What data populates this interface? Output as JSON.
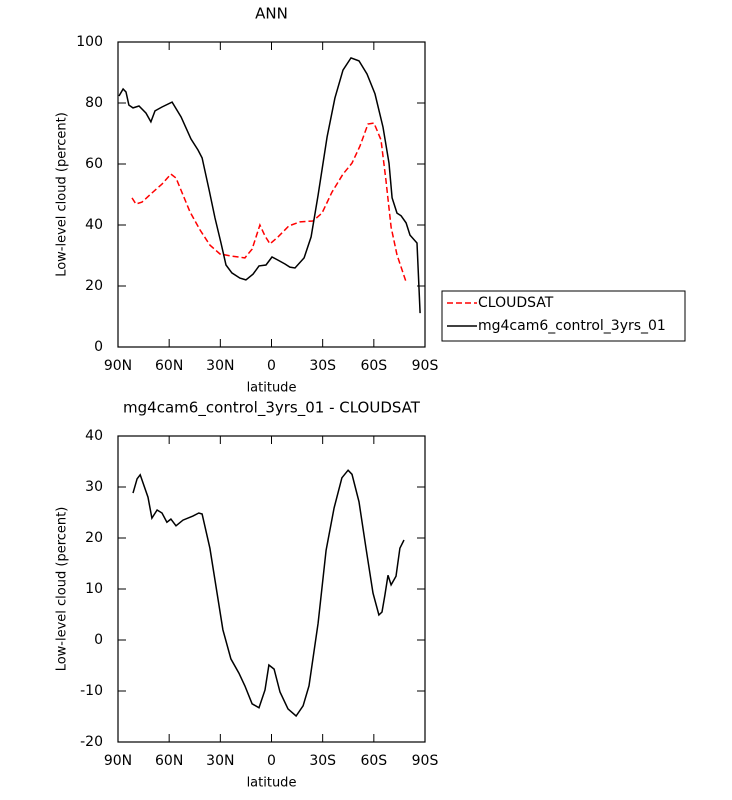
{
  "chart_data": [
    {
      "type": "line",
      "title": "ANN",
      "xlabel": "latitude",
      "ylabel": "Low-level cloud (percent)",
      "xlim": [
        90,
        -90
      ],
      "xticks": [
        {
          "value": 90,
          "label": "90N"
        },
        {
          "value": 60,
          "label": "60N"
        },
        {
          "value": 30,
          "label": "30N"
        },
        0,
        {
          "value": -30,
          "label": "30S"
        },
        {
          "value": -60,
          "label": "60S"
        },
        {
          "value": -90,
          "label": "90S"
        }
      ],
      "ylim": [
        0,
        100
      ],
      "yticks": [
        0,
        20,
        40,
        60,
        80,
        100
      ],
      "legend": "right",
      "series": [
        {
          "name": "CLOUDSAT",
          "color": "#ff0000",
          "dashed": true,
          "x": [
            81.8,
            79.5,
            75.9,
            70.1,
            64.2,
            59.0,
            56.0,
            53.1,
            47.8,
            41.9,
            36.1,
            30.2,
            23.2,
            15.6,
            11.4,
            6.8,
            3.8,
            0.9,
            -3.8,
            -10.2,
            -16.7,
            -24.3,
            -29.6,
            -35.5,
            -41.9,
            -47.2,
            -51.9,
            -56.6,
            -60.1,
            -64.2,
            -67.1,
            -70.1,
            -73.6,
            -78.9
          ],
          "values": [
            48.9,
            46.9,
            47.5,
            50.5,
            53.4,
            56.7,
            55.4,
            51.5,
            44.3,
            38.4,
            33.4,
            30.5,
            29.8,
            29.2,
            32.1,
            40.0,
            36.4,
            33.8,
            36.1,
            39.7,
            41.0,
            41.3,
            43.9,
            50.8,
            56.7,
            60.3,
            65.9,
            73.1,
            73.4,
            67.9,
            54.8,
            39.3,
            30.2,
            21.3
          ]
        },
        {
          "name": "mg4cam6_control_3yrs_01",
          "color": "#000000",
          "dashed": false,
          "x": [
            89.4,
            87.0,
            85.3,
            83.6,
            81.2,
            77.7,
            73.6,
            70.7,
            68.3,
            64.2,
            58.3,
            53.0,
            47.2,
            43.1,
            40.7,
            36.6,
            33.1,
            29.6,
            26.7,
            23.2,
            18.5,
            15.0,
            10.8,
            7.3,
            3.2,
            -0.3,
            -3.8,
            -7.9,
            -10.8,
            -13.8,
            -19.1,
            -23.2,
            -27.3,
            -32.6,
            -37.2,
            -41.9,
            -46.6,
            -51.3,
            -56.0,
            -60.7,
            -65.4,
            -68.9,
            -70.7,
            -73.6,
            -76.0,
            -78.9,
            -81.2,
            -85.3,
            -87.1
          ],
          "values": [
            82.3,
            84.6,
            83.6,
            79.3,
            78.4,
            79.0,
            76.7,
            73.8,
            77.4,
            78.7,
            80.3,
            75.4,
            68.2,
            64.6,
            62.0,
            51.5,
            42.3,
            34.1,
            26.9,
            24.3,
            22.6,
            22.0,
            23.9,
            26.6,
            26.9,
            29.5,
            28.5,
            27.2,
            26.2,
            25.9,
            29.2,
            36.1,
            49.8,
            68.9,
            81.6,
            90.8,
            94.8,
            93.8,
            89.5,
            83.0,
            72.1,
            60.3,
            48.9,
            43.9,
            43.0,
            40.7,
            36.7,
            34.1,
            11.1
          ]
        }
      ]
    },
    {
      "type": "line",
      "title": "mg4cam6_control_3yrs_01 - CLOUDSAT",
      "xlabel": "latitude",
      "ylabel": "Low-level cloud (percent)",
      "xlim": [
        90,
        -90
      ],
      "xticks": [
        {
          "value": 90,
          "label": "90N"
        },
        {
          "value": 60,
          "label": "60N"
        },
        {
          "value": 30,
          "label": "30N"
        },
        0,
        {
          "value": -30,
          "label": "30S"
        },
        {
          "value": -60,
          "label": "60S"
        },
        {
          "value": -90,
          "label": "90S"
        }
      ],
      "ylim": [
        -20,
        40
      ],
      "yticks": [
        -20,
        -10,
        0,
        10,
        20,
        30,
        40
      ],
      "series": [
        {
          "color": "#000000",
          "dashed": false,
          "x": [
            81.2,
            78.8,
            77.0,
            72.4,
            70.1,
            67.1,
            64.2,
            61.3,
            59.0,
            56.0,
            51.9,
            46.1,
            42.6,
            40.7,
            36.1,
            32.0,
            28.5,
            23.8,
            19.1,
            15.6,
            11.4,
            7.3,
            3.8,
            1.5,
            -1.5,
            -5.0,
            -9.7,
            -14.4,
            -18.5,
            -22.0,
            -27.3,
            -32.0,
            -36.7,
            -41.3,
            -44.9,
            -47.2,
            -51.3,
            -55.4,
            -59.5,
            -63.0,
            -64.8,
            -66.5,
            -68.3,
            -70.1,
            -73.0,
            -75.3,
            -77.7
          ],
          "values": [
            28.8,
            31.6,
            32.4,
            28.0,
            23.9,
            25.5,
            24.9,
            23.1,
            23.7,
            22.4,
            23.5,
            24.3,
            24.9,
            24.7,
            18.0,
            9.4,
            2.0,
            -3.7,
            -6.5,
            -9.0,
            -12.5,
            -13.3,
            -9.8,
            -4.9,
            -5.7,
            -10.2,
            -13.5,
            -14.9,
            -12.9,
            -9.0,
            3.3,
            17.6,
            25.9,
            31.8,
            33.3,
            32.5,
            27.1,
            18.0,
            9.2,
            4.9,
            5.5,
            8.8,
            12.7,
            10.8,
            12.5,
            18.0,
            19.6
          ]
        }
      ]
    }
  ]
}
